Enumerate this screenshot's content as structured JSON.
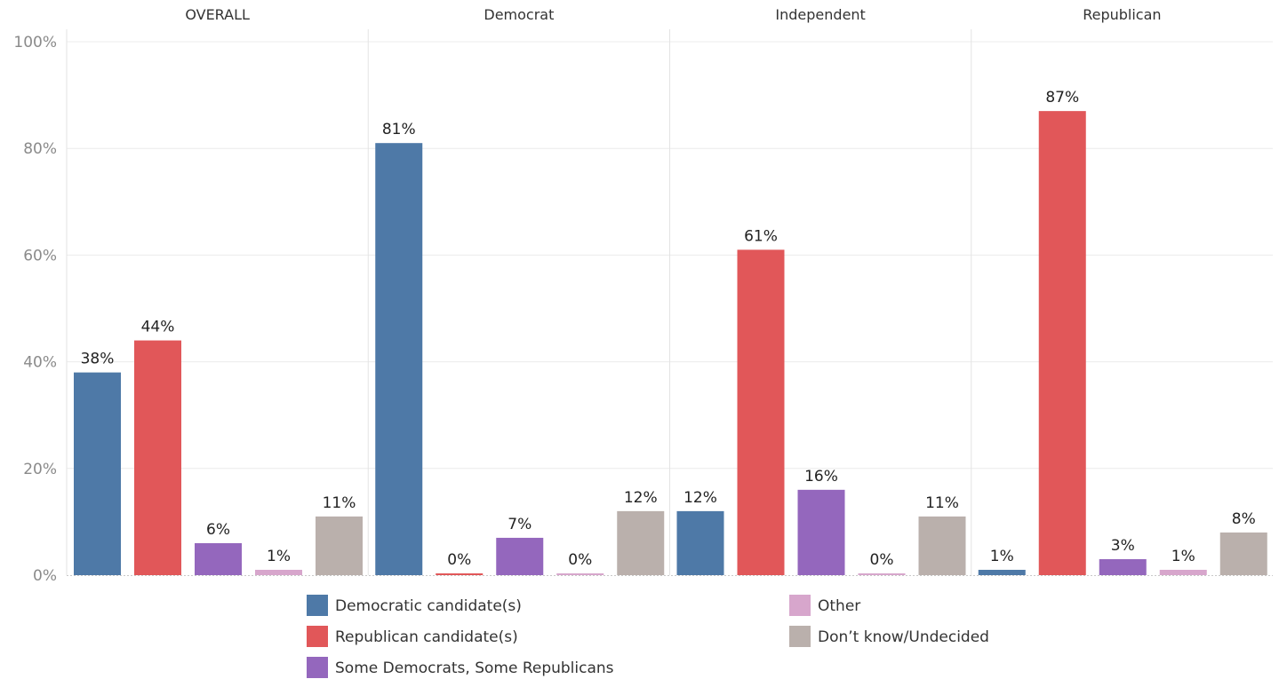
{
  "chart_data": {
    "type": "bar",
    "panels": [
      "OVERALL",
      "Democrat",
      "Independent",
      "Republican"
    ],
    "ylim": [
      0,
      100
    ],
    "y_ticks": [
      0,
      20,
      40,
      60,
      80,
      100
    ],
    "y_tick_labels": [
      "0%",
      "20%",
      "40%",
      "60%",
      "80%",
      "100%"
    ],
    "value_suffix": "%",
    "grid": true,
    "legend_position": "bottom",
    "series": [
      {
        "name": "Democratic candidate(s)",
        "color": "#4e79a7",
        "values": [
          38,
          81,
          12,
          1
        ],
        "value_labels": [
          "38%",
          "81%",
          "12%",
          "1%"
        ]
      },
      {
        "name": "Republican candidate(s)",
        "color": "#e15759",
        "values": [
          44,
          0,
          61,
          87
        ],
        "value_labels": [
          "44%",
          "0%",
          "61%",
          "87%"
        ]
      },
      {
        "name": "Some Democrats, Some Republicans",
        "color": "#9467bd",
        "values": [
          6,
          7,
          16,
          3
        ],
        "value_labels": [
          "6%",
          "7%",
          "16%",
          "3%"
        ]
      },
      {
        "name": "Other",
        "color": "#d7a6cc",
        "values": [
          1,
          0,
          0,
          1
        ],
        "value_labels": [
          "1%",
          "0%",
          "0%",
          "1%"
        ]
      },
      {
        "name": "Don’t know/Undecided",
        "color": "#bab0ac",
        "values": [
          11,
          12,
          11,
          8
        ],
        "value_labels": [
          "11%",
          "12%",
          "11%",
          "8%"
        ]
      }
    ]
  }
}
